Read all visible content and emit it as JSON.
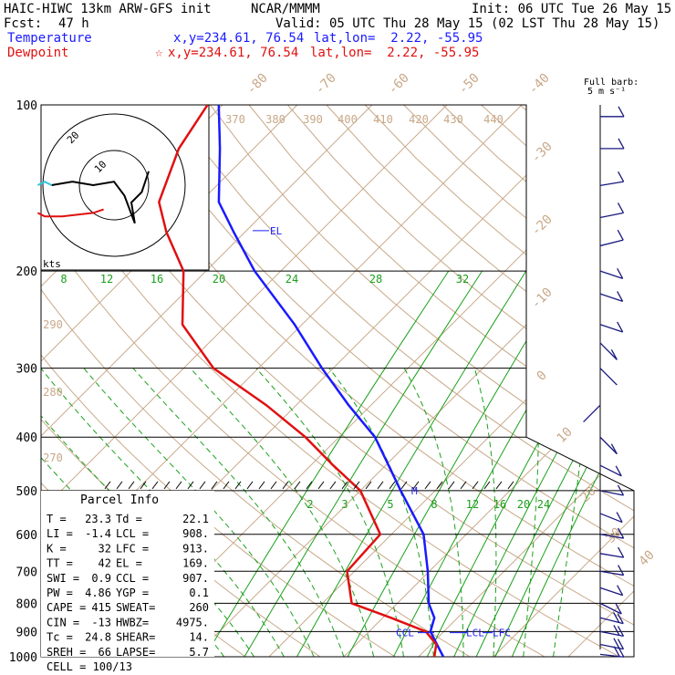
{
  "header": {
    "model": "HAIC-HIWC 13km ARW-GFS init",
    "org": "NCAR/MMMM",
    "init": "Init: 06 UTC Tue 26 May 15",
    "fcst_label": "Fcst:",
    "fcst_value": "47 h",
    "valid": "Valid: 05 UTC Thu 28 May 15 (02 LST Thu 28 May 15)"
  },
  "legend": {
    "temperature": {
      "label": "Temperature",
      "xy": "x,y=234.61, 76.54",
      "latlon": "lat,lon=  2.22, -55.95",
      "color": "#1a1aff"
    },
    "dewpoint": {
      "label": "Dewpoint",
      "marker": "☆",
      "xy": "x,y=234.61, 76.54",
      "latlon": "lat,lon=  2.22, -55.95",
      "color": "#e01010"
    }
  },
  "barb_header": {
    "line1": "Full barb:",
    "line2": "5 m s⁻¹"
  },
  "hodograph": {
    "units": "kts",
    "ring_labels": [
      "10",
      "20"
    ]
  },
  "parcel": {
    "title": "Parcel Info",
    "rows": [
      [
        "T  =",
        "23.3",
        "Td =",
        "22.1"
      ],
      [
        "LI =",
        "-1.4",
        "LCL =",
        "908."
      ],
      [
        "K  =",
        "32",
        "LFC =",
        "913."
      ],
      [
        "TT =",
        "42",
        "EL  =",
        "169."
      ],
      [
        "SWI =",
        "0.9",
        "CCL =",
        "907."
      ],
      [
        "PW =",
        "4.86",
        "YGP =",
        "0.1"
      ],
      [
        "CAPE =",
        "415",
        "SWEAT=",
        "260"
      ],
      [
        "CIN =",
        "-13",
        "HWBZ=",
        "4975."
      ],
      [
        "Tc =",
        "24.8",
        "SHEAR=",
        "14."
      ],
      [
        "SREH =",
        "66",
        "LAPSE=",
        "5.7"
      ],
      [
        "CELL = 100/13",
        "",
        "",
        ""
      ]
    ]
  },
  "chart_data": {
    "type": "line",
    "subtype": "skew-T log-P sounding",
    "pressure_levels": [
      100,
      200,
      300,
      400,
      500,
      600,
      700,
      800,
      900,
      1000
    ],
    "isotherm_labels": [
      "-80",
      "-70",
      "-60",
      "-50",
      "-40",
      "-30",
      "-20",
      "-10",
      "0",
      "10",
      "20",
      "30",
      "40"
    ],
    "theta_labels": [
      "370",
      "380",
      "390",
      "400",
      "410",
      "420",
      "430",
      "440",
      "290",
      "280",
      "270"
    ],
    "mixing_ratio_labels_upper": [
      "8",
      "12",
      "16",
      "20",
      "24",
      "28",
      "32"
    ],
    "mixing_ratio_labels_lower": [
      "2",
      "3",
      "5",
      "8",
      "12",
      "16",
      "20",
      "24"
    ],
    "level_markers": {
      "el": "EL",
      "ccl": "CCL",
      "lcl": "LCL",
      "lfc": "LFC",
      "m": "M"
    },
    "series": [
      {
        "name": "Temperature",
        "color": "#1a1aff",
        "points": [
          [
            1000,
            23.3
          ],
          [
            950,
            20.8
          ],
          [
            900,
            18.2
          ],
          [
            850,
            16.9
          ],
          [
            800,
            14.2
          ],
          [
            700,
            9.8
          ],
          [
            600,
            4.3
          ],
          [
            500,
            -4.6
          ],
          [
            450,
            -9.6
          ],
          [
            400,
            -15.2
          ],
          [
            350,
            -23.0
          ],
          [
            300,
            -31.5
          ],
          [
            250,
            -41.0
          ],
          [
            200,
            -53.5
          ],
          [
            170,
            -61.5
          ],
          [
            150,
            -67.5
          ],
          [
            120,
            -74.5
          ],
          [
            100,
            -80.5
          ]
        ]
      },
      {
        "name": "Dewpoint",
        "color": "#e01010",
        "points": [
          [
            1000,
            22.1
          ],
          [
            950,
            20.7
          ],
          [
            900,
            17.6
          ],
          [
            850,
            11.1
          ],
          [
            800,
            3.9
          ],
          [
            700,
            -1.0
          ],
          [
            600,
            -1.5
          ],
          [
            500,
            -10.0
          ],
          [
            450,
            -17.0
          ],
          [
            400,
            -24.5
          ],
          [
            350,
            -34.0
          ],
          [
            300,
            -46.0
          ],
          [
            250,
            -56.0
          ],
          [
            200,
            -63.0
          ],
          [
            170,
            -70.5
          ],
          [
            150,
            -75.5
          ],
          [
            120,
            -80.0
          ],
          [
            100,
            -82.0
          ]
        ]
      }
    ],
    "wind_barbs": [
      {
        "p": 990,
        "u": -9,
        "v": 1
      },
      {
        "p": 950,
        "u": -10,
        "v": 2
      },
      {
        "p": 900,
        "u": -10,
        "v": 2
      },
      {
        "p": 850,
        "u": -8,
        "v": 2
      },
      {
        "p": 800,
        "u": -6,
        "v": 3
      },
      {
        "p": 750,
        "u": -6,
        "v": 2
      },
      {
        "p": 700,
        "u": -6,
        "v": 1
      },
      {
        "p": 650,
        "u": -6,
        "v": 1
      },
      {
        "p": 600,
        "u": -6,
        "v": 1
      },
      {
        "p": 550,
        "u": -5,
        "v": 2
      },
      {
        "p": 500,
        "u": -5,
        "v": 1
      },
      {
        "p": 450,
        "u": -4,
        "v": 2
      },
      {
        "p": 400,
        "u": -2,
        "v": 2
      },
      {
        "p": 350,
        "u": 1,
        "v": 1
      },
      {
        "p": 300,
        "u": -1,
        "v": 1
      },
      {
        "p": 270,
        "u": -2,
        "v": 2
      },
      {
        "p": 250,
        "u": -3,
        "v": 1
      },
      {
        "p": 220,
        "u": -3,
        "v": 1
      },
      {
        "p": 200,
        "u": -3,
        "v": 1
      },
      {
        "p": 180,
        "u": -4,
        "v": -1
      },
      {
        "p": 160,
        "u": -5,
        "v": -1
      },
      {
        "p": 140,
        "u": -6,
        "v": -1
      },
      {
        "p": 120,
        "u": -6,
        "v": 0
      },
      {
        "p": 105,
        "u": -5,
        "v": 0
      }
    ],
    "hodograph_paths": {
      "black": [
        [
          -18,
          0
        ],
        [
          -12,
          1
        ],
        [
          -6,
          0
        ],
        [
          0,
          1
        ],
        [
          3,
          -3
        ],
        [
          6,
          -11
        ],
        [
          5,
          -5
        ],
        [
          8,
          -2
        ],
        [
          10,
          4
        ]
      ],
      "cyan": [
        [
          -22,
          0
        ],
        [
          -20,
          1
        ],
        [
          -18,
          0
        ]
      ],
      "red": [
        [
          -22,
          -8
        ],
        [
          -20,
          -9
        ],
        [
          -15,
          -9
        ],
        [
          -6,
          -8
        ],
        [
          -3,
          -7
        ]
      ]
    }
  }
}
